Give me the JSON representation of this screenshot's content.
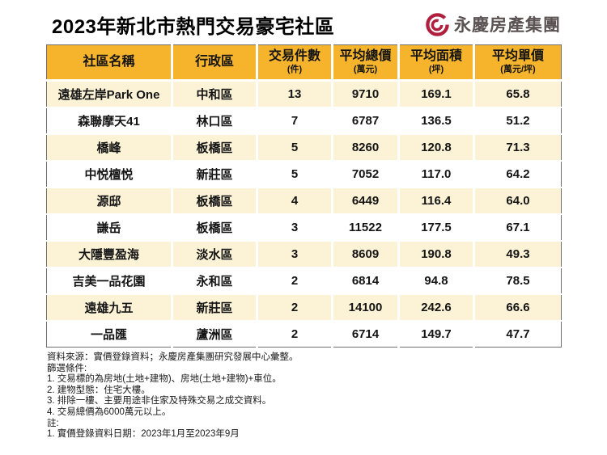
{
  "page": {
    "title": "2023年新北市熱門交易豪宅社區",
    "brand": {
      "name": "永慶房產集團"
    }
  },
  "colors": {
    "header_bg": "#F6B42C",
    "row_alt_bg": "#FCF3D7",
    "brand_red": "#B01F3D",
    "brand_text": "#5B5252",
    "table_border": "#6f6f6f"
  },
  "table": {
    "columns": [
      {
        "label": "社區名稱",
        "unit": ""
      },
      {
        "label": "行政區",
        "unit": ""
      },
      {
        "label": "交易件數",
        "unit": "(件)"
      },
      {
        "label": "平均總價",
        "unit": "(萬元)"
      },
      {
        "label": "平均面積",
        "unit": "(坪)"
      },
      {
        "label": "平均單價",
        "unit": "(萬元/坪)"
      }
    ],
    "rows": [
      [
        "遠雄左岸Park One",
        "中和區",
        "13",
        "9710",
        "169.1",
        "65.8"
      ],
      [
        "森聯摩天41",
        "林口區",
        "7",
        "6787",
        "136.5",
        "51.2"
      ],
      [
        "橋峰",
        "板橋區",
        "5",
        "8260",
        "120.8",
        "71.3"
      ],
      [
        "中悦檀悦",
        "新莊區",
        "5",
        "7052",
        "117.0",
        "64.2"
      ],
      [
        "源邸",
        "板橋區",
        "4",
        "6449",
        "116.4",
        "64.0"
      ],
      [
        "謙岳",
        "板橋區",
        "3",
        "11522",
        "177.5",
        "67.1"
      ],
      [
        "大隱豐盈海",
        "淡水區",
        "3",
        "8609",
        "190.8",
        "49.3"
      ],
      [
        "吉美一品花園",
        "永和區",
        "2",
        "6814",
        "94.8",
        "78.5"
      ],
      [
        "遠雄九五",
        "新莊區",
        "2",
        "14100",
        "242.6",
        "66.6"
      ],
      [
        "一品匯",
        "蘆洲區",
        "2",
        "6714",
        "149.7",
        "47.7"
      ]
    ]
  },
  "footnotes": {
    "lines": [
      "資料來源：實價登錄資料；永慶房產集團研究發展中心彙整。",
      "篩選條件:",
      "1. 交易標的為房地(土地+建物)、房地(土地+建物)+車位。",
      "2. 建物型態：住宅大樓。",
      "3. 排除一樓、主要用途非住家及特殊交易之成交資料。",
      "4. 交易總價為6000萬元以上。",
      "註:",
      "1. 實價登錄資料日期：2023年1月至2023年9月"
    ]
  },
  "chart_data": {
    "type": "table",
    "title": "2023年新北市熱門交易豪宅社區",
    "columns": [
      "社區名稱",
      "行政區",
      "交易件數(件)",
      "平均總價(萬元)",
      "平均面積(坪)",
      "平均單價(萬元/坪)"
    ],
    "rows": [
      [
        "遠雄左岸Park One",
        "中和區",
        13,
        9710,
        169.1,
        65.8
      ],
      [
        "森聯摩天41",
        "林口區",
        7,
        6787,
        136.5,
        51.2
      ],
      [
        "橋峰",
        "板橋區",
        5,
        8260,
        120.8,
        71.3
      ],
      [
        "中悦檀悦",
        "新莊區",
        5,
        7052,
        117.0,
        64.2
      ],
      [
        "源邸",
        "板橋區",
        4,
        6449,
        116.4,
        64.0
      ],
      [
        "謙岳",
        "板橋區",
        3,
        11522,
        177.5,
        67.1
      ],
      [
        "大隱豐盈海",
        "淡水區",
        3,
        8609,
        190.8,
        49.3
      ],
      [
        "吉美一品花園",
        "永和區",
        2,
        6814,
        94.8,
        78.5
      ],
      [
        "遠雄九五",
        "新莊區",
        2,
        14100,
        242.6,
        66.6
      ],
      [
        "一品匯",
        "蘆洲區",
        2,
        6714,
        149.7,
        47.7
      ]
    ],
    "source": "實價登錄資料；永慶房產集團研究發展中心彙整"
  }
}
